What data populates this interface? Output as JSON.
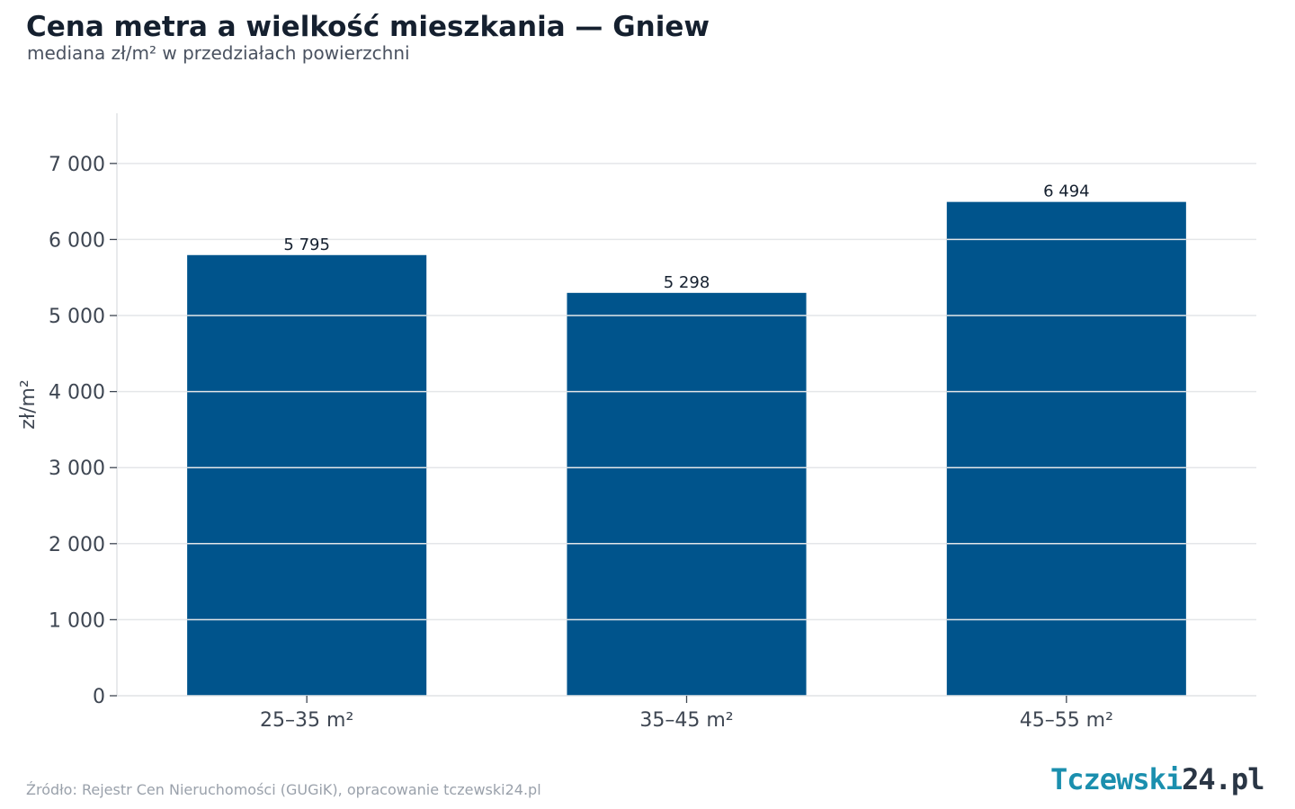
{
  "chart_data": {
    "type": "bar",
    "title": "Cena metra a wielkość mieszkania — Gniew",
    "subtitle": "mediana zł/m² w przedziałach powierzchni",
    "xlabel": "",
    "ylabel": "zł/m²",
    "categories": [
      "25–35 m²",
      "35–45 m²",
      "45–55 m²"
    ],
    "values": [
      5795,
      5298,
      6494
    ],
    "value_labels": [
      "5 795",
      "5 298",
      "6 494"
    ],
    "ylim": [
      0,
      7660
    ],
    "yticks": [
      0,
      1000,
      2000,
      3000,
      4000,
      5000,
      6000,
      7000
    ],
    "ytick_labels": [
      "0",
      "1 000",
      "2 000",
      "3 000",
      "4 000",
      "5 000",
      "6 000",
      "7 000"
    ],
    "grid": true,
    "legend": "none",
    "bar_color": "#00548c"
  },
  "source": "Źródło: Rejestr Cen Nieruchomości (GUGiK), opracowanie tczewski24.pl",
  "logo": {
    "part1": "Tczewski",
    "part2": "24.pl"
  }
}
